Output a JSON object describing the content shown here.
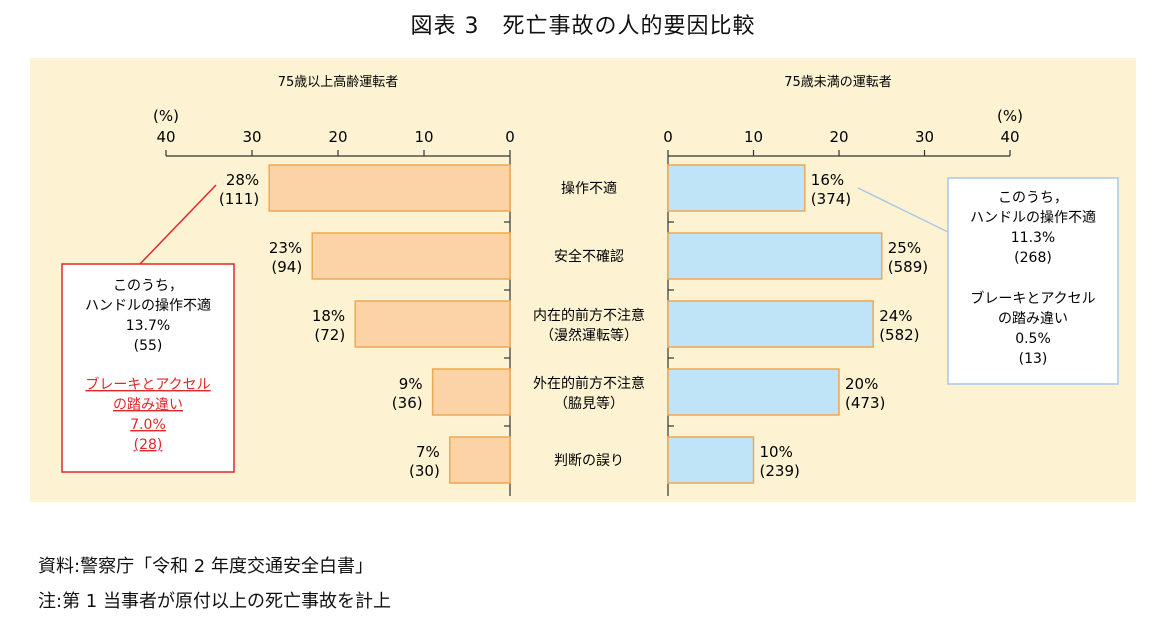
{
  "title": "図表 3　死亡事故の人的要因比較",
  "chart_data": {
    "type": "bar",
    "categories": [
      {
        "label": "操作不適",
        "sub": ""
      },
      {
        "label": "安全不確認",
        "sub": ""
      },
      {
        "label": "内在的前方不注意",
        "sub": "（漫然運転等）"
      },
      {
        "label": "外在的前方不注意",
        "sub": "（脇見等）"
      },
      {
        "label": "判断の誤り",
        "sub": ""
      }
    ],
    "series": [
      {
        "name": "75歳以上高齢運転者",
        "values": [
          28,
          23,
          18,
          9,
          7
        ],
        "counts": [
          "(111)",
          "(94)",
          "(72)",
          "(36)",
          "(30)"
        ],
        "pct_labels": [
          "28%",
          "23%",
          "18%",
          "9%",
          "7%"
        ],
        "color": "#fbd3a6",
        "border": "#f0a752"
      },
      {
        "name": "75歳未満の運転者",
        "values": [
          16,
          25,
          24,
          20,
          10
        ],
        "counts": [
          "(374)",
          "(589)",
          "(582)",
          "(473)",
          "(239)"
        ],
        "pct_labels": [
          "16%",
          "25%",
          "24%",
          "20%",
          "10%"
        ],
        "color": "#bfe3f7",
        "border": "#f0a752"
      }
    ],
    "xlim": [
      0,
      40
    ],
    "ticks": [
      0,
      10,
      20,
      30,
      40
    ],
    "unit_label": "(%)",
    "background": "#fdf3d3",
    "annotations": {
      "left": {
        "lines": [
          "このうち，",
          "ハンドルの操作不適",
          "13.7%",
          "(55)"
        ],
        "red_lines": [
          "ブレーキとアクセル",
          "の踏み違い",
          "7.0%",
          "(28)"
        ],
        "border": "#e0282c",
        "text_red": "#e0282c"
      },
      "right": {
        "lines": [
          "このうち，",
          "ハンドルの操作不適",
          "11.3%",
          "(268)"
        ],
        "lines2": [
          "ブレーキとアクセル",
          "の踏み違い",
          "0.5%",
          "(13)"
        ],
        "border": "#a9c8e6"
      }
    }
  },
  "footnotes": {
    "source": "資料:警察庁「令和 2 年度交通安全白書」",
    "note": "注:第 1 当事者が原付以上の死亡事故を計上"
  }
}
